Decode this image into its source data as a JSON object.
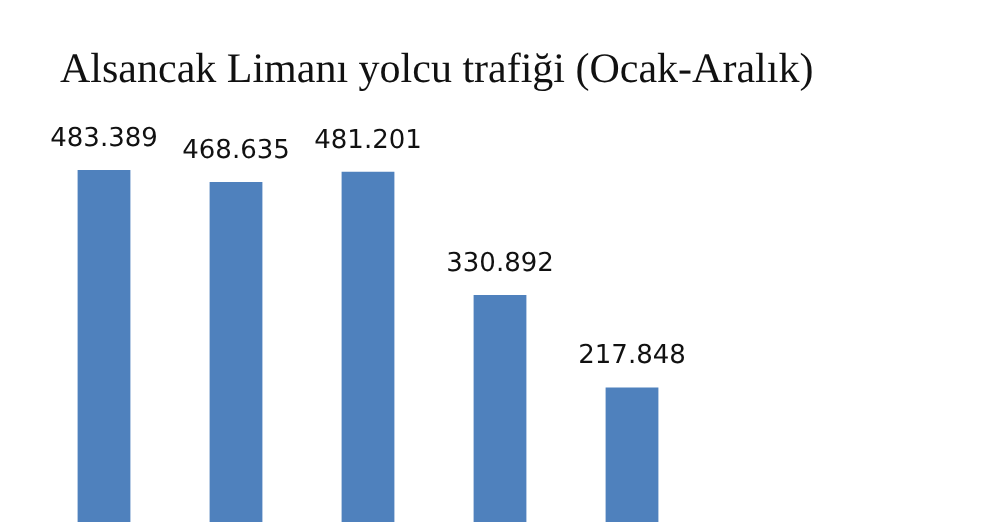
{
  "chart_data": {
    "type": "bar",
    "title": "Alsancak Limanı yolcu trafiği (Ocak-Aralık)",
    "categories": [
      null,
      null,
      null,
      null,
      null
    ],
    "values": [
      483389,
      468635,
      481201,
      330892,
      217848
    ],
    "value_labels": [
      "483.389",
      "468.635",
      "481.201",
      "330.892",
      "217.848"
    ],
    "color": "#4f81bd"
  }
}
